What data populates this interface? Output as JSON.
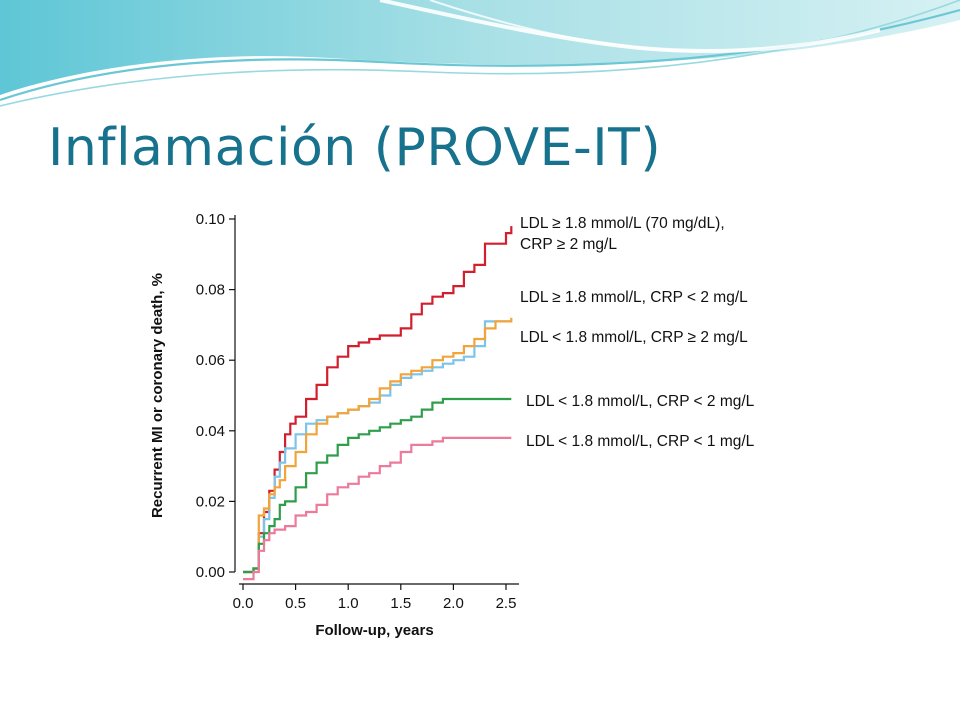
{
  "slide": {
    "title": "Inflamación (PROVE-IT)"
  },
  "chart_data": {
    "type": "line",
    "title": "",
    "xlabel": "Follow-up, years",
    "ylabel": "Recurrent MI or coronary death, %",
    "xlim": [
      0,
      2.6
    ],
    "ylim": [
      0,
      0.1
    ],
    "x_ticks": [
      "0.0",
      "0.5",
      "1.0",
      "1.5",
      "2.0",
      "2.5"
    ],
    "y_ticks": [
      "0.00",
      "0.02",
      "0.04",
      "0.06",
      "0.08",
      "0.10"
    ],
    "grid": false,
    "series": [
      {
        "name_lines": [
          "LDL ≥ 1.8 mmol/L (70 mg/dL),",
          "CRP ≥ 2 mg/L"
        ],
        "color": "#d11f2e",
        "x": [
          0.0,
          0.1,
          0.15,
          0.2,
          0.25,
          0.3,
          0.35,
          0.4,
          0.45,
          0.5,
          0.6,
          0.7,
          0.8,
          0.9,
          1.0,
          1.1,
          1.2,
          1.3,
          1.4,
          1.5,
          1.6,
          1.7,
          1.8,
          1.9,
          2.0,
          2.1,
          2.2,
          2.3,
          2.4,
          2.5,
          2.55
        ],
        "y": [
          0.0,
          0.001,
          0.011,
          0.017,
          0.023,
          0.029,
          0.034,
          0.039,
          0.042,
          0.044,
          0.049,
          0.053,
          0.058,
          0.061,
          0.064,
          0.065,
          0.066,
          0.067,
          0.067,
          0.069,
          0.073,
          0.076,
          0.078,
          0.079,
          0.081,
          0.085,
          0.087,
          0.093,
          0.093,
          0.096,
          0.098
        ]
      },
      {
        "name_lines": [
          "LDL ≥ 1.8 mmol/L, CRP < 2 mg/L"
        ],
        "color": "#7cc4ea",
        "x": [
          0.0,
          0.1,
          0.15,
          0.2,
          0.25,
          0.3,
          0.35,
          0.4,
          0.5,
          0.6,
          0.7,
          0.8,
          0.9,
          1.0,
          1.1,
          1.2,
          1.3,
          1.4,
          1.5,
          1.6,
          1.7,
          1.8,
          1.9,
          2.0,
          2.1,
          2.2,
          2.3,
          2.4,
          2.5,
          2.55
        ],
        "y": [
          0.0,
          0.001,
          0.01,
          0.015,
          0.021,
          0.027,
          0.031,
          0.035,
          0.039,
          0.042,
          0.043,
          0.044,
          0.045,
          0.046,
          0.047,
          0.048,
          0.05,
          0.053,
          0.055,
          0.056,
          0.057,
          0.058,
          0.059,
          0.06,
          0.061,
          0.064,
          0.071,
          0.071,
          0.071,
          0.071
        ]
      },
      {
        "name_lines": [
          "LDL < 1.8 mmol/L, CRP ≥ 2 mg/L"
        ],
        "color": "#f2a43a",
        "x": [
          0.0,
          0.1,
          0.15,
          0.2,
          0.25,
          0.3,
          0.35,
          0.4,
          0.5,
          0.6,
          0.7,
          0.8,
          0.9,
          1.0,
          1.1,
          1.2,
          1.3,
          1.4,
          1.5,
          1.6,
          1.7,
          1.8,
          1.9,
          2.0,
          2.1,
          2.2,
          2.3,
          2.4,
          2.5,
          2.55
        ],
        "y": [
          0.0,
          0.001,
          0.016,
          0.018,
          0.022,
          0.024,
          0.026,
          0.03,
          0.034,
          0.039,
          0.042,
          0.044,
          0.045,
          0.046,
          0.047,
          0.049,
          0.052,
          0.054,
          0.056,
          0.057,
          0.058,
          0.06,
          0.061,
          0.062,
          0.064,
          0.066,
          0.069,
          0.071,
          0.071,
          0.072
        ]
      },
      {
        "name_lines": [
          "LDL < 1.8 mmol/L, CRP < 2 mg/L"
        ],
        "color": "#2f9e4a",
        "x": [
          0.0,
          0.1,
          0.15,
          0.2,
          0.25,
          0.3,
          0.35,
          0.4,
          0.5,
          0.6,
          0.7,
          0.8,
          0.9,
          1.0,
          1.1,
          1.2,
          1.3,
          1.4,
          1.5,
          1.6,
          1.7,
          1.8,
          1.9,
          2.0,
          2.2,
          2.4,
          2.55
        ],
        "y": [
          0.0,
          0.001,
          0.008,
          0.011,
          0.013,
          0.015,
          0.019,
          0.02,
          0.024,
          0.028,
          0.031,
          0.033,
          0.036,
          0.038,
          0.039,
          0.04,
          0.041,
          0.042,
          0.043,
          0.044,
          0.046,
          0.048,
          0.049,
          0.049,
          0.049,
          0.049,
          0.049
        ]
      },
      {
        "name_lines": [
          "LDL < 1.8 mmol/L, CRP < 1 mg/L"
        ],
        "color": "#ec7a9a",
        "x": [
          0.0,
          0.1,
          0.15,
          0.2,
          0.25,
          0.3,
          0.4,
          0.5,
          0.6,
          0.7,
          0.8,
          0.9,
          1.0,
          1.1,
          1.2,
          1.3,
          1.4,
          1.5,
          1.6,
          1.7,
          1.8,
          1.9,
          2.0,
          2.2,
          2.4,
          2.55
        ],
        "y": [
          -0.002,
          0.0,
          0.006,
          0.009,
          0.011,
          0.012,
          0.013,
          0.016,
          0.017,
          0.019,
          0.022,
          0.024,
          0.025,
          0.027,
          0.028,
          0.03,
          0.031,
          0.034,
          0.036,
          0.036,
          0.037,
          0.038,
          0.038,
          0.038,
          0.038,
          0.038
        ]
      }
    ]
  }
}
